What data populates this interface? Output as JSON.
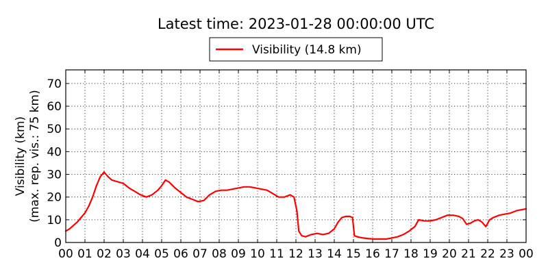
{
  "chart_data": {
    "type": "line",
    "title": "Latest time: 2023-01-28 00:00:00 UTC",
    "xlabel": "",
    "ylabel": [
      "Visibility (km)",
      "(max. rep. vis.: 75 km)"
    ],
    "xlim": [
      0,
      24
    ],
    "ylim": [
      0,
      76
    ],
    "x_ticks": [
      "00",
      "01",
      "02",
      "03",
      "04",
      "05",
      "06",
      "07",
      "08",
      "09",
      "10",
      "11",
      "12",
      "13",
      "14",
      "15",
      "16",
      "17",
      "18",
      "19",
      "20",
      "21",
      "22",
      "23",
      "00"
    ],
    "y_ticks": [
      0,
      10,
      20,
      30,
      40,
      50,
      60,
      70
    ],
    "grid": true,
    "legend": {
      "position": "top-center",
      "entries": [
        "Visibility (14.8 km)"
      ]
    },
    "series": [
      {
        "name": "Visibility (14.8 km)",
        "color": "#ff0000",
        "x": [
          0,
          0.2,
          0.4,
          0.6,
          0.8,
          1.0,
          1.2,
          1.4,
          1.6,
          1.8,
          2.0,
          2.2,
          2.4,
          2.6,
          2.8,
          3.0,
          3.3,
          3.6,
          3.9,
          4.2,
          4.5,
          4.8,
          5.0,
          5.2,
          5.4,
          5.7,
          6.0,
          6.3,
          6.6,
          6.9,
          7.2,
          7.5,
          7.8,
          8.1,
          8.4,
          8.7,
          9.0,
          9.3,
          9.6,
          9.9,
          10.2,
          10.5,
          10.8,
          11.1,
          11.4,
          11.7,
          11.9,
          12.05,
          12.15,
          12.3,
          12.5,
          12.8,
          13.1,
          13.4,
          13.7,
          14.0,
          14.2,
          14.4,
          14.6,
          14.8,
          14.95,
          15.05,
          15.2,
          15.5,
          15.8,
          16.1,
          16.4,
          16.7,
          17.0,
          17.3,
          17.6,
          17.9,
          18.2,
          18.4,
          18.7,
          19.0,
          19.3,
          19.6,
          19.9,
          20.2,
          20.5,
          20.7,
          20.9,
          21.1,
          21.3,
          21.5,
          21.7,
          21.9,
          22.1,
          22.3,
          22.6,
          22.9,
          23.2,
          23.5,
          23.8,
          24.0
        ],
        "y": [
          5,
          6,
          7.5,
          9,
          11,
          13,
          16,
          20,
          25,
          29,
          31,
          29,
          27.5,
          27,
          26.5,
          26,
          24,
          22.5,
          21,
          20,
          21,
          23,
          25,
          27.5,
          26.5,
          24,
          22,
          20,
          19,
          18,
          18.5,
          21,
          22.5,
          23,
          23,
          23.5,
          24,
          24.5,
          24.5,
          24,
          23.5,
          23,
          21.5,
          20,
          20,
          21,
          20,
          14,
          5,
          3,
          2.5,
          3.5,
          4,
          3.5,
          4,
          6,
          9,
          11,
          11.5,
          11.5,
          11,
          3,
          2.5,
          2,
          1.7,
          1.5,
          1.5,
          1.5,
          2,
          2.5,
          3.5,
          5,
          7,
          10,
          9.5,
          9.5,
          10,
          11,
          12,
          12,
          11.5,
          10.5,
          8,
          8.5,
          9.5,
          10,
          9,
          7,
          10,
          11,
          12,
          12.5,
          13,
          14,
          14.5,
          14.8
        ]
      }
    ]
  }
}
